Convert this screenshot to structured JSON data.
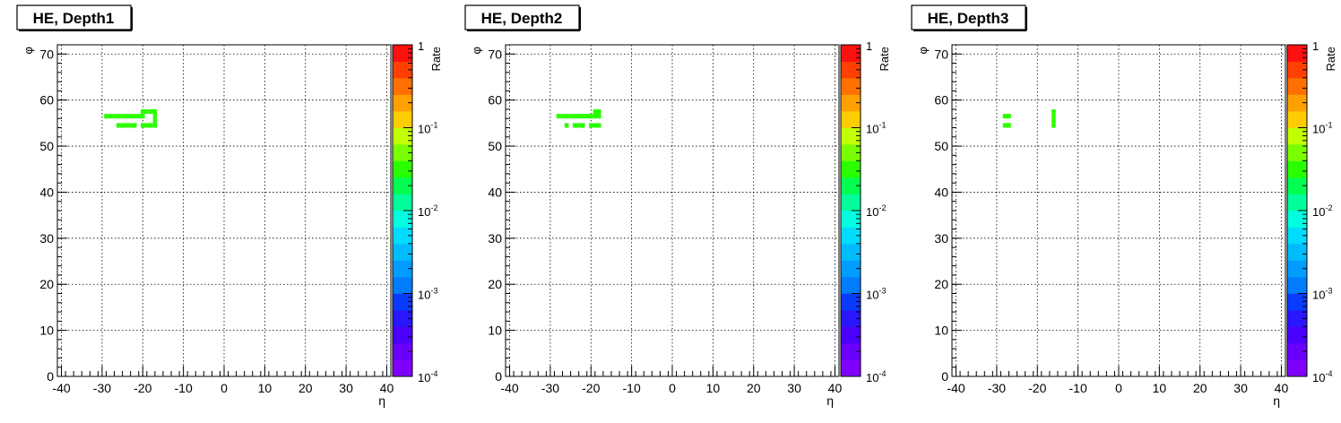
{
  "chart_data": [
    {
      "type": "heatmap",
      "title": "HE, Depth1",
      "xlabel": "η",
      "ylabel": "φ",
      "colorbar_label": "Rate",
      "xlim": [
        -41,
        41
      ],
      "ylim": [
        0,
        72
      ],
      "x_ticks": [
        "-40",
        "-30",
        "-20",
        "-10",
        "0",
        "10",
        "20",
        "30",
        "40"
      ],
      "y_ticks": [
        "0",
        "10",
        "20",
        "30",
        "40",
        "50",
        "60",
        "70"
      ],
      "colorbar_ticks": [
        {
          "base": "10",
          "exp": "-4"
        },
        {
          "base": "10",
          "exp": "-3"
        },
        {
          "base": "10",
          "exp": "-2"
        },
        {
          "base": "10",
          "exp": "-1"
        },
        {
          "base": "1",
          "exp": ""
        }
      ],
      "zlim": [
        0.0001,
        1
      ],
      "z_scale": "log",
      "grid": true,
      "cells": [
        {
          "eta": -29,
          "phi": 56.5,
          "deta": 1,
          "dphi": 1,
          "rate": 0.03
        },
        {
          "eta": -28,
          "phi": 56.5,
          "deta": 1,
          "dphi": 1,
          "rate": 0.03
        },
        {
          "eta": -27,
          "phi": 56.5,
          "deta": 1,
          "dphi": 1,
          "rate": 0.03
        },
        {
          "eta": -26,
          "phi": 56.5,
          "deta": 1,
          "dphi": 1,
          "rate": 0.03
        },
        {
          "eta": -25,
          "phi": 56.5,
          "deta": 1,
          "dphi": 1,
          "rate": 0.03
        },
        {
          "eta": -24,
          "phi": 56.5,
          "deta": 1,
          "dphi": 1,
          "rate": 0.03
        },
        {
          "eta": -23,
          "phi": 56.5,
          "deta": 1,
          "dphi": 1,
          "rate": 0.03
        },
        {
          "eta": -22,
          "phi": 56.5,
          "deta": 1,
          "dphi": 1,
          "rate": 0.03
        },
        {
          "eta": -21,
          "phi": 56.5,
          "deta": 1,
          "dphi": 1,
          "rate": 0.03
        },
        {
          "eta": -20,
          "phi": 56.5,
          "deta": 1,
          "dphi": 1,
          "rate": 0.03
        },
        {
          "eta": -26,
          "phi": 54.5,
          "deta": 1,
          "dphi": 1,
          "rate": 0.03
        },
        {
          "eta": -25,
          "phi": 54.5,
          "deta": 1,
          "dphi": 1,
          "rate": 0.03
        },
        {
          "eta": -24,
          "phi": 54.5,
          "deta": 1,
          "dphi": 1,
          "rate": 0.03
        },
        {
          "eta": -23,
          "phi": 54.5,
          "deta": 1,
          "dphi": 1,
          "rate": 0.03
        },
        {
          "eta": -22,
          "phi": 54.5,
          "deta": 1,
          "dphi": 1,
          "rate": 0.03
        },
        {
          "eta": -20,
          "phi": 54.5,
          "deta": 1,
          "dphi": 1,
          "rate": 0.03
        },
        {
          "eta": -19,
          "phi": 54.5,
          "deta": 1,
          "dphi": 1,
          "rate": 0.03
        },
        {
          "eta": -18,
          "phi": 54.5,
          "deta": 1,
          "dphi": 1,
          "rate": 0.03
        },
        {
          "eta": -17,
          "phi": 54.5,
          "deta": 1,
          "dphi": 1,
          "rate": 0.03
        },
        {
          "eta": -20,
          "phi": 57.5,
          "deta": 1,
          "dphi": 1,
          "rate": 0.03
        },
        {
          "eta": -19,
          "phi": 57.5,
          "deta": 1,
          "dphi": 1,
          "rate": 0.03
        },
        {
          "eta": -18,
          "phi": 57.5,
          "deta": 1,
          "dphi": 1,
          "rate": 0.03
        },
        {
          "eta": -17,
          "phi": 57.5,
          "deta": 1,
          "dphi": 1,
          "rate": 0.03
        },
        {
          "eta": -17,
          "phi": 56.5,
          "deta": 1,
          "dphi": 1,
          "rate": 0.03
        },
        {
          "eta": -17,
          "phi": 55.5,
          "deta": 1,
          "dphi": 1,
          "rate": 0.03
        }
      ]
    },
    {
      "type": "heatmap",
      "title": "HE, Depth2",
      "xlabel": "η",
      "ylabel": "φ",
      "colorbar_label": "Rate",
      "xlim": [
        -41,
        41
      ],
      "ylim": [
        0,
        72
      ],
      "x_ticks": [
        "-40",
        "-30",
        "-20",
        "-10",
        "0",
        "10",
        "20",
        "30",
        "40"
      ],
      "y_ticks": [
        "0",
        "10",
        "20",
        "30",
        "40",
        "50",
        "60",
        "70"
      ],
      "colorbar_ticks": [
        {
          "base": "10",
          "exp": "-4"
        },
        {
          "base": "10",
          "exp": "-3"
        },
        {
          "base": "10",
          "exp": "-2"
        },
        {
          "base": "10",
          "exp": "-1"
        },
        {
          "base": "1",
          "exp": ""
        }
      ],
      "zlim": [
        0.0001,
        1
      ],
      "z_scale": "log",
      "grid": true,
      "cells": [
        {
          "eta": -28,
          "phi": 56.5,
          "deta": 1,
          "dphi": 1,
          "rate": 0.03
        },
        {
          "eta": -27,
          "phi": 56.5,
          "deta": 1,
          "dphi": 1,
          "rate": 0.03
        },
        {
          "eta": -26,
          "phi": 56.5,
          "deta": 1,
          "dphi": 1,
          "rate": 0.03
        },
        {
          "eta": -25,
          "phi": 56.5,
          "deta": 1,
          "dphi": 1,
          "rate": 0.03
        },
        {
          "eta": -24,
          "phi": 56.5,
          "deta": 1,
          "dphi": 1,
          "rate": 0.03
        },
        {
          "eta": -23,
          "phi": 56.5,
          "deta": 1,
          "dphi": 1,
          "rate": 0.03
        },
        {
          "eta": -22,
          "phi": 56.5,
          "deta": 1,
          "dphi": 1,
          "rate": 0.03
        },
        {
          "eta": -21,
          "phi": 56.5,
          "deta": 1,
          "dphi": 1,
          "rate": 0.03
        },
        {
          "eta": -20,
          "phi": 56.5,
          "deta": 1,
          "dphi": 1,
          "rate": 0.03
        },
        {
          "eta": -19,
          "phi": 56.5,
          "deta": 1,
          "dphi": 1,
          "rate": 0.03
        },
        {
          "eta": -18,
          "phi": 56.5,
          "deta": 1,
          "dphi": 1,
          "rate": 0.03
        },
        {
          "eta": -19,
          "phi": 57.5,
          "deta": 1,
          "dphi": 1,
          "rate": 0.03
        },
        {
          "eta": -18,
          "phi": 57.5,
          "deta": 1,
          "dphi": 1,
          "rate": 0.03
        },
        {
          "eta": -26,
          "phi": 54.5,
          "deta": 1,
          "dphi": 1,
          "rate": 0.03
        },
        {
          "eta": -24,
          "phi": 54.5,
          "deta": 1,
          "dphi": 1,
          "rate": 0.03
        },
        {
          "eta": -23,
          "phi": 54.5,
          "deta": 1,
          "dphi": 1,
          "rate": 0.03
        },
        {
          "eta": -22,
          "phi": 54.5,
          "deta": 1,
          "dphi": 1,
          "rate": 0.03
        },
        {
          "eta": -20,
          "phi": 54.5,
          "deta": 1,
          "dphi": 1,
          "rate": 0.03
        },
        {
          "eta": -19,
          "phi": 54.5,
          "deta": 1,
          "dphi": 1,
          "rate": 0.03
        },
        {
          "eta": -18,
          "phi": 54.5,
          "deta": 1,
          "dphi": 1,
          "rate": 0.03
        }
      ]
    },
    {
      "type": "heatmap",
      "title": "HE, Depth3",
      "xlabel": "η",
      "ylabel": "φ",
      "colorbar_label": "Rate",
      "xlim": [
        -41,
        41
      ],
      "ylim": [
        0,
        72
      ],
      "x_ticks": [
        "-40",
        "-30",
        "-20",
        "-10",
        "0",
        "10",
        "20",
        "30",
        "40"
      ],
      "y_ticks": [
        "0",
        "10",
        "20",
        "30",
        "40",
        "50",
        "60",
        "70"
      ],
      "colorbar_ticks": [
        {
          "base": "10",
          "exp": "-4"
        },
        {
          "base": "10",
          "exp": "-3"
        },
        {
          "base": "10",
          "exp": "-2"
        },
        {
          "base": "10",
          "exp": "-1"
        },
        {
          "base": "1",
          "exp": ""
        }
      ],
      "zlim": [
        0.0001,
        1
      ],
      "z_scale": "log",
      "grid": true,
      "cells": [
        {
          "eta": -28,
          "phi": 56.5,
          "deta": 2,
          "dphi": 1,
          "rate": 0.03
        },
        {
          "eta": -28,
          "phi": 54.5,
          "deta": 2,
          "dphi": 1,
          "rate": 0.03
        },
        {
          "eta": -16,
          "phi": 57.5,
          "deta": 1,
          "dphi": 1,
          "rate": 0.03
        },
        {
          "eta": -16,
          "phi": 56.5,
          "deta": 1,
          "dphi": 1,
          "rate": 0.03
        },
        {
          "eta": -16,
          "phi": 55.5,
          "deta": 1,
          "dphi": 1,
          "rate": 0.03
        },
        {
          "eta": -16,
          "phi": 54.5,
          "deta": 1,
          "dphi": 1,
          "rate": 0.03
        }
      ]
    }
  ]
}
